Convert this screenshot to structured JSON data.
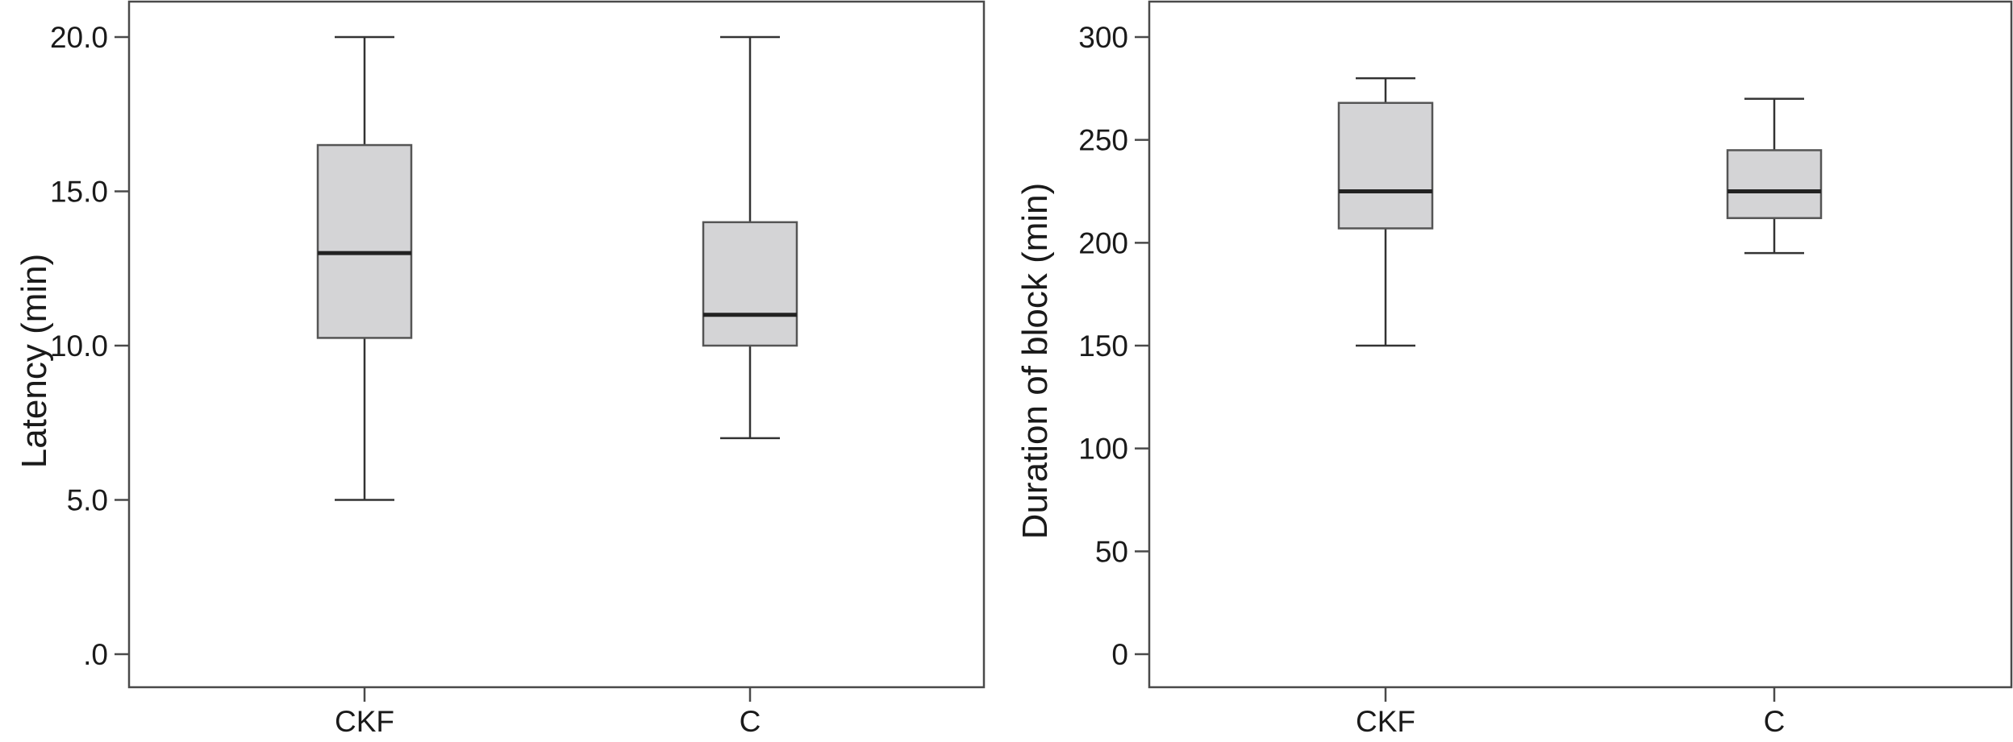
{
  "chart_data": [
    {
      "type": "box",
      "title": "",
      "xlabel": "",
      "ylabel": "Latency (min)",
      "ylim": [
        0,
        20
      ],
      "yticks": [
        0,
        5,
        10,
        15,
        20
      ],
      "ytick_labels": [
        ".0",
        "5.0",
        "10.0",
        "15.0",
        "20.0"
      ],
      "categories": [
        "CKF",
        "C"
      ],
      "boxes": [
        {
          "category": "CKF",
          "min": 5.0,
          "q1": 10.25,
          "median": 13.0,
          "q3": 16.5,
          "max": 20.0
        },
        {
          "category": "C",
          "min": 7.0,
          "q1": 10.0,
          "median": 11.0,
          "q3": 14.0,
          "max": 20.0
        }
      ],
      "colors": {
        "box_fill": "#d4d4d6",
        "box_edge": "#555555",
        "median": "#222222"
      },
      "grid": false
    },
    {
      "type": "box",
      "title": "",
      "xlabel": "",
      "ylabel": "Duration of block (min)",
      "ylim": [
        0,
        300
      ],
      "yticks": [
        0,
        50,
        100,
        150,
        200,
        250,
        300
      ],
      "ytick_labels": [
        "0",
        "50",
        "100",
        "150",
        "200",
        "250",
        "300"
      ],
      "categories": [
        "CKF",
        "C"
      ],
      "boxes": [
        {
          "category": "CKF",
          "min": 150,
          "q1": 207,
          "median": 225,
          "q3": 268,
          "max": 280
        },
        {
          "category": "C",
          "min": 195,
          "q1": 212,
          "median": 225,
          "q3": 245,
          "max": 270
        }
      ],
      "colors": {
        "box_fill": "#d4d4d6",
        "box_edge": "#555555",
        "median": "#222222"
      },
      "grid": false
    }
  ]
}
